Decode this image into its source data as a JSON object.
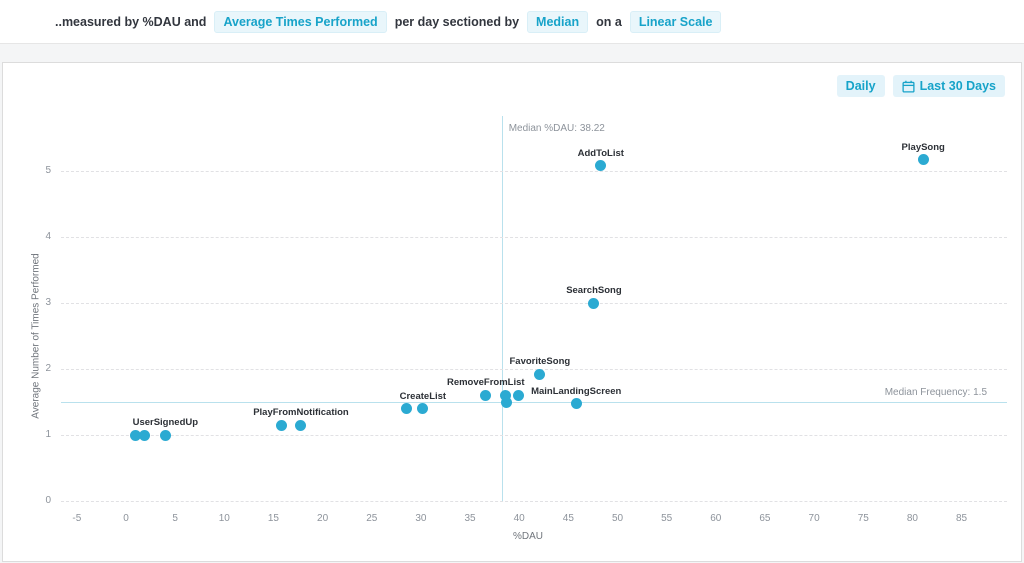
{
  "measurement_bar": {
    "prefix": "..measured by %DAU and",
    "metric": "Average Times Performed",
    "sectioned_text": "per day sectioned by",
    "section_mode": "Median",
    "on_a": "on a",
    "scale": "Linear Scale"
  },
  "toolbar": {
    "interval": "Daily",
    "date_range": "Last 30 Days",
    "date_range_icon": "calendar-icon"
  },
  "colors": {
    "accent": "#17a3c9",
    "point": "#2baad2",
    "median_line": "#b9e1ed"
  },
  "chart_data": {
    "type": "scatter",
    "title": "",
    "xlabel": "%DAU",
    "ylabel": "Average Number of Times Performed",
    "x_ticks": [
      -5,
      0,
      5,
      10,
      15,
      20,
      25,
      30,
      35,
      40,
      45,
      50,
      55,
      60,
      65,
      70,
      75,
      80,
      85
    ],
    "y_ticks": [
      0,
      1,
      2,
      3,
      4,
      5
    ],
    "xlim": [
      -7.5,
      89
    ],
    "ylim": [
      0,
      5.8
    ],
    "grid": "horizontal-dashed",
    "median_x": {
      "value": 38.22,
      "label": "Median %DAU: 38.22"
    },
    "median_y": {
      "value": 1.5,
      "label": "Median Frequency: 1.5"
    },
    "points": [
      {
        "label": "",
        "x": 1.0,
        "y": 1.0
      },
      {
        "label": "",
        "x": 1.9,
        "y": 1.0
      },
      {
        "label": "UserSignedUp",
        "x": 4.0,
        "y": 1.0
      },
      {
        "label": "",
        "x": 15.8,
        "y": 1.15
      },
      {
        "label": "PlayFromNotification",
        "x": 17.8,
        "y": 1.15
      },
      {
        "label": "",
        "x": 28.5,
        "y": 1.4
      },
      {
        "label": "CreateList",
        "x": 30.2,
        "y": 1.4
      },
      {
        "label": "RemoveFromList",
        "x": 36.6,
        "y": 1.6
      },
      {
        "label": "",
        "x": 38.6,
        "y": 1.6
      },
      {
        "label": "",
        "x": 38.7,
        "y": 1.5
      },
      {
        "label": "",
        "x": 39.9,
        "y": 1.6
      },
      {
        "label": "FavoriteSong",
        "x": 42.1,
        "y": 1.92
      },
      {
        "label": "MainLandingScreen",
        "x": 45.8,
        "y": 1.47
      },
      {
        "label": "SearchSong",
        "x": 47.6,
        "y": 3.0
      },
      {
        "label": "AddToList",
        "x": 48.3,
        "y": 5.08
      },
      {
        "label": "PlaySong",
        "x": 81.1,
        "y": 5.17
      }
    ]
  }
}
